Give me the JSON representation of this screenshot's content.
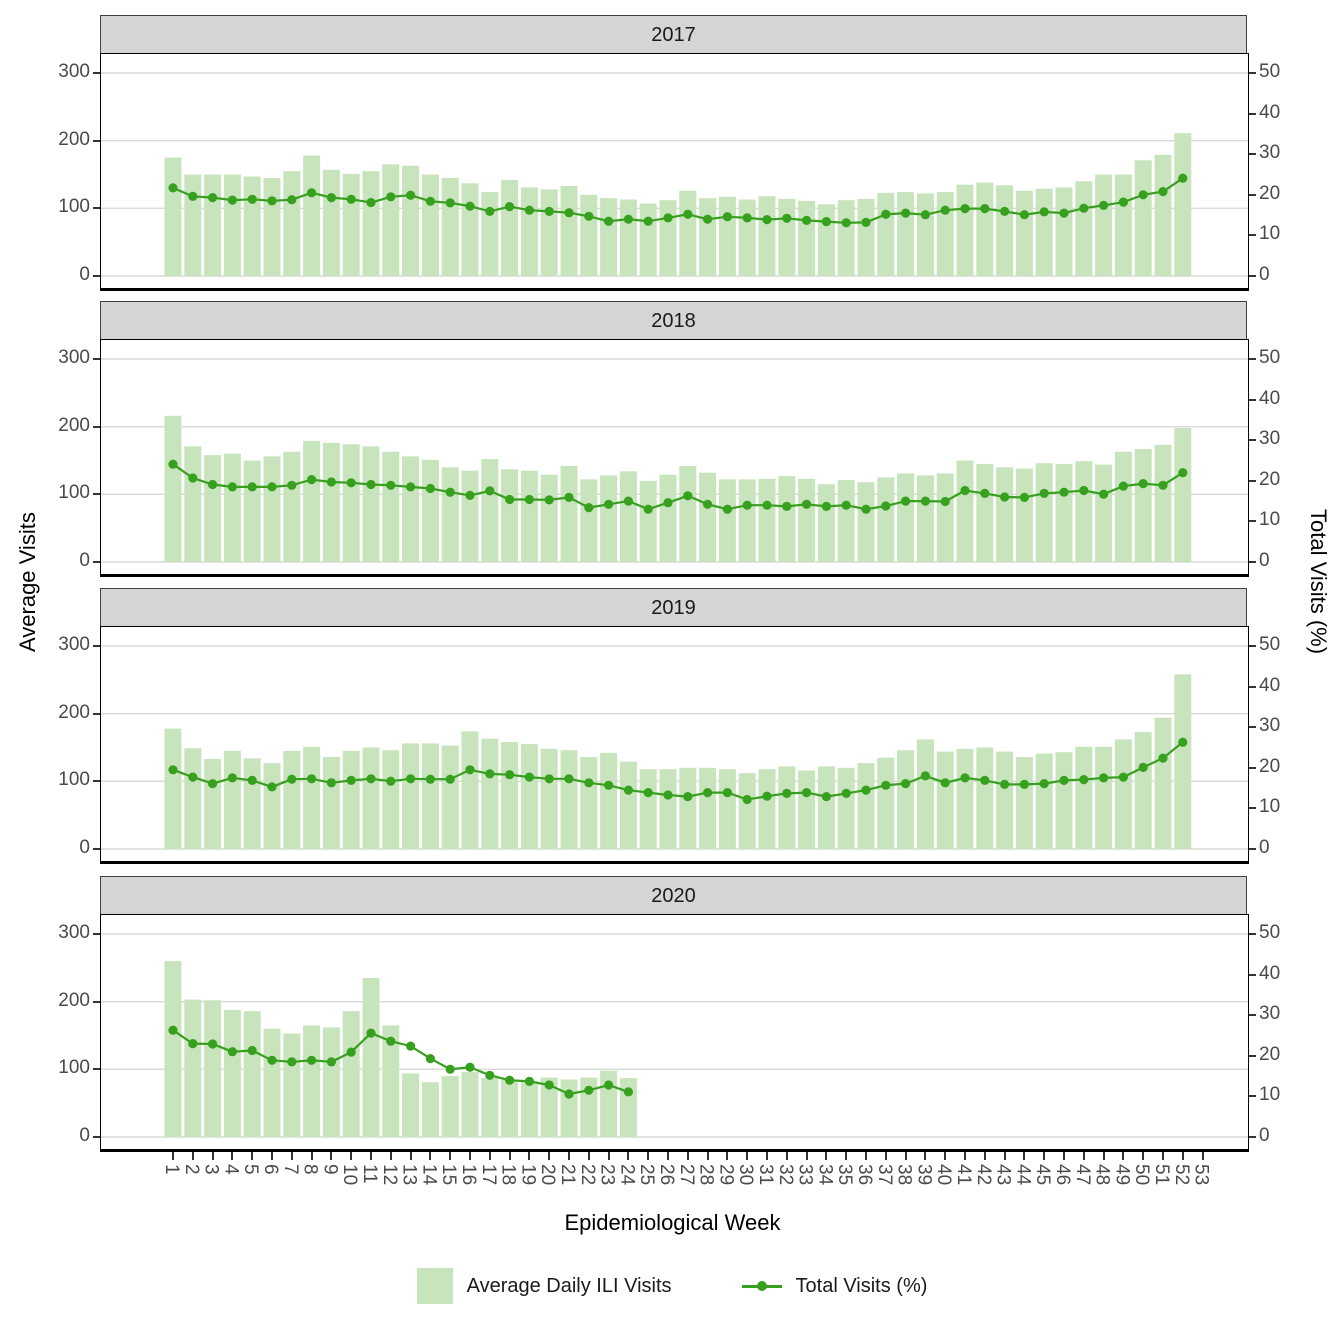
{
  "figure": {
    "x_axis": {
      "title": "Epidemiological Week",
      "ticks": [
        "1",
        "2",
        "3",
        "4",
        "5",
        "6",
        "7",
        "8",
        "9",
        "10",
        "11",
        "12",
        "13",
        "14",
        "15",
        "16",
        "17",
        "18",
        "19",
        "20",
        "21",
        "22",
        "23",
        "24",
        "25",
        "26",
        "27",
        "28",
        "29",
        "30",
        "31",
        "32",
        "33",
        "34",
        "35",
        "36",
        "37",
        "38",
        "39",
        "40",
        "41",
        "42",
        "43",
        "44",
        "45",
        "46",
        "47",
        "48",
        "49",
        "50",
        "51",
        "52",
        "53"
      ]
    },
    "y_left": {
      "title": "Average Visits",
      "ticks": [
        300,
        200,
        100,
        0
      ],
      "range": [
        0,
        300
      ]
    },
    "y_right": {
      "title": "Total Visits (%)",
      "ticks": [
        50,
        40,
        30,
        20,
        10,
        0
      ],
      "range": [
        0,
        50
      ]
    },
    "legend": {
      "bar_label": "Average Daily ILI Visits",
      "line_label": "Total Visits (%)"
    },
    "colors": {
      "bar": "#c8e4bd",
      "line": "#37a01e",
      "strip_bg": "#d5d5d5",
      "grid": "#d9d9d9",
      "axis_text": "#4a4a4a",
      "text": "#1a1a1a"
    },
    "grid": "major horizontal only",
    "legend_position": "bottom center"
  },
  "chart_data": [
    {
      "type": "bar+line",
      "facet": "2017",
      "bar_series": "Average Daily ILI Visits (left axis, 0-300)",
      "line_series": "Total Visits % (right axis, 0-50)",
      "weeks": [
        1,
        2,
        3,
        4,
        5,
        6,
        7,
        8,
        9,
        10,
        11,
        12,
        13,
        14,
        15,
        16,
        17,
        18,
        19,
        20,
        21,
        22,
        23,
        24,
        25,
        26,
        27,
        28,
        29,
        30,
        31,
        32,
        33,
        34,
        35,
        36,
        37,
        38,
        39,
        40,
        41,
        42,
        43,
        44,
        45,
        46,
        47,
        48,
        49,
        50,
        51,
        52
      ],
      "bars": [
        175,
        150,
        150,
        150,
        147,
        145,
        155,
        178,
        157,
        151,
        155,
        165,
        163,
        150,
        145,
        137,
        124,
        142,
        131,
        128,
        133,
        120,
        115,
        113,
        107,
        112,
        126,
        115,
        117,
        113,
        118,
        114,
        111,
        106,
        112,
        114,
        123,
        124,
        122,
        124,
        135,
        138,
        134,
        126,
        129,
        131,
        140,
        150,
        150,
        171,
        179,
        211
      ],
      "line_pct": [
        21.7,
        19.6,
        19.3,
        18.7,
        18.9,
        18.5,
        18.8,
        20.5,
        19.3,
        18.9,
        18.1,
        19.5,
        19.9,
        18.4,
        18.0,
        17.2,
        15.9,
        17.1,
        16.2,
        15.9,
        15.6,
        14.7,
        13.5,
        14.0,
        13.5,
        14.3,
        15.2,
        14.0,
        14.6,
        14.3,
        13.9,
        14.2,
        13.7,
        13.4,
        13.1,
        13.2,
        15.2,
        15.5,
        15.1,
        16.2,
        16.6,
        16.6,
        15.9,
        15.1,
        15.8,
        15.5,
        16.7,
        17.4,
        18.2,
        20.0,
        20.8,
        24.1
      ]
    },
    {
      "type": "bar+line",
      "facet": "2018",
      "bar_series": "Average Daily ILI Visits (left axis, 0-300)",
      "line_series": "Total Visits % (right axis, 0-50)",
      "weeks": [
        1,
        2,
        3,
        4,
        5,
        6,
        7,
        8,
        9,
        10,
        11,
        12,
        13,
        14,
        15,
        16,
        17,
        18,
        19,
        20,
        21,
        22,
        23,
        24,
        25,
        26,
        27,
        28,
        29,
        30,
        31,
        32,
        33,
        34,
        35,
        36,
        37,
        38,
        39,
        40,
        41,
        42,
        43,
        44,
        45,
        46,
        47,
        48,
        49,
        50,
        51,
        52
      ],
      "bars": [
        216,
        171,
        158,
        160,
        150,
        156,
        163,
        179,
        176,
        174,
        171,
        163,
        156,
        151,
        140,
        135,
        152,
        137,
        135,
        129,
        142,
        122,
        128,
        134,
        120,
        129,
        142,
        132,
        122,
        122,
        123,
        127,
        123,
        115,
        121,
        118,
        125,
        131,
        128,
        131,
        150,
        145,
        140,
        138,
        146,
        145,
        149,
        144,
        163,
        167,
        173,
        198
      ],
      "line_pct": [
        24.1,
        20.7,
        19.1,
        18.5,
        18.5,
        18.5,
        18.9,
        20.3,
        19.7,
        19.5,
        19.1,
        18.9,
        18.5,
        18.1,
        17.2,
        16.4,
        17.5,
        15.4,
        15.4,
        15.3,
        15.9,
        13.4,
        14.2,
        15.0,
        13.0,
        14.6,
        16.3,
        14.2,
        13.0,
        14.0,
        14.0,
        13.7,
        14.2,
        13.7,
        14.0,
        13.0,
        13.8,
        15.0,
        15.0,
        14.9,
        17.6,
        16.9,
        16.0,
        15.9,
        16.9,
        17.2,
        17.6,
        16.7,
        18.7,
        19.3,
        18.9,
        22.0
      ]
    },
    {
      "type": "bar+line",
      "facet": "2019",
      "bar_series": "Average Daily ILI Visits (left axis, 0-300)",
      "line_series": "Total Visits % (right axis, 0-50)",
      "weeks": [
        1,
        2,
        3,
        4,
        5,
        6,
        7,
        8,
        9,
        10,
        11,
        12,
        13,
        14,
        15,
        16,
        17,
        18,
        19,
        20,
        21,
        22,
        23,
        24,
        25,
        26,
        27,
        28,
        29,
        30,
        31,
        32,
        33,
        34,
        35,
        36,
        37,
        38,
        39,
        40,
        41,
        42,
        43,
        44,
        45,
        46,
        47,
        48,
        49,
        50,
        51,
        52
      ],
      "bars": [
        178,
        149,
        133,
        145,
        134,
        127,
        145,
        151,
        136,
        145,
        150,
        146,
        156,
        156,
        153,
        174,
        163,
        158,
        155,
        148,
        146,
        136,
        142,
        129,
        118,
        118,
        120,
        120,
        118,
        112,
        118,
        122,
        116,
        122,
        120,
        127,
        135,
        146,
        162,
        144,
        148,
        150,
        144,
        136,
        141,
        143,
        151,
        151,
        162,
        173,
        194,
        258
      ],
      "line_pct": [
        19.5,
        17.7,
        16.1,
        17.5,
        16.9,
        15.3,
        17.2,
        17.3,
        16.3,
        16.9,
        17.3,
        16.7,
        17.3,
        17.2,
        17.2,
        19.5,
        18.5,
        18.3,
        17.7,
        17.3,
        17.3,
        16.3,
        15.7,
        14.5,
        13.9,
        13.3,
        12.9,
        13.9,
        13.9,
        12.2,
        13.0,
        13.7,
        13.9,
        12.9,
        13.7,
        14.5,
        15.7,
        16.1,
        18.0,
        16.3,
        17.5,
        16.9,
        15.9,
        15.9,
        16.1,
        16.9,
        17.1,
        17.5,
        17.7,
        20.1,
        22.4,
        26.3
      ]
    },
    {
      "type": "bar+line",
      "facet": "2020",
      "bar_series": "Average Daily ILI Visits (left axis, 0-300)",
      "line_series": "Total Visits % (right axis, 0-50)",
      "weeks": [
        1,
        2,
        3,
        4,
        5,
        6,
        7,
        8,
        9,
        10,
        11,
        12,
        13,
        14,
        15,
        16,
        17,
        18,
        19,
        20,
        21,
        22,
        23,
        24
      ],
      "bars": [
        260,
        203,
        202,
        188,
        186,
        160,
        153,
        165,
        162,
        186,
        235,
        165,
        94,
        81,
        90,
        96,
        87,
        85,
        83,
        88,
        85,
        88,
        98,
        87
      ],
      "line_pct": [
        26.3,
        23.0,
        22.9,
        21.0,
        21.3,
        18.9,
        18.5,
        18.9,
        18.5,
        20.9,
        25.6,
        23.6,
        22.4,
        19.3,
        16.7,
        17.2,
        15.2,
        14.0,
        13.7,
        12.8,
        10.6,
        11.5,
        12.8,
        11.1
      ]
    }
  ]
}
